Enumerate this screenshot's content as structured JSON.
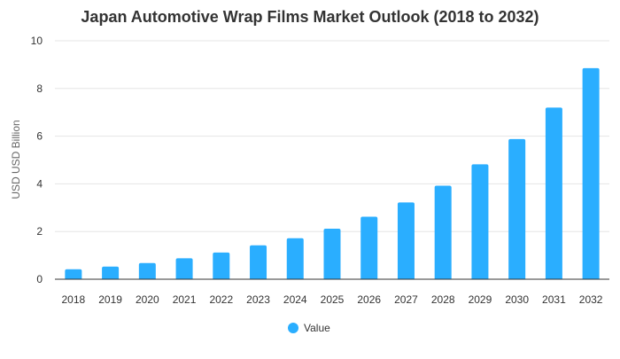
{
  "chart_data": {
    "type": "bar",
    "title": "Japan Automotive Wrap Films Market Outlook (2018 to 2032)",
    "ylabel": "USD USD Billion",
    "xlabel": "",
    "categories": [
      "2018",
      "2019",
      "2020",
      "2021",
      "2022",
      "2023",
      "2024",
      "2025",
      "2026",
      "2027",
      "2028",
      "2029",
      "2030",
      "2031",
      "2032"
    ],
    "series": [
      {
        "name": "Value",
        "values": [
          0.42,
          0.53,
          0.68,
          0.88,
          1.12,
          1.42,
          1.72,
          2.12,
          2.62,
          3.22,
          3.92,
          4.82,
          5.88,
          7.2,
          8.85
        ]
      }
    ],
    "ylim": [
      0,
      10
    ],
    "yticks": [
      0,
      2,
      4,
      6,
      8,
      10
    ],
    "grid": true,
    "legend": "bottom-center",
    "colors": {
      "bar": "#2aaeff",
      "grid": "#e6e6e6",
      "axis": "#333333",
      "text": "#333333",
      "title": "#333333"
    }
  }
}
